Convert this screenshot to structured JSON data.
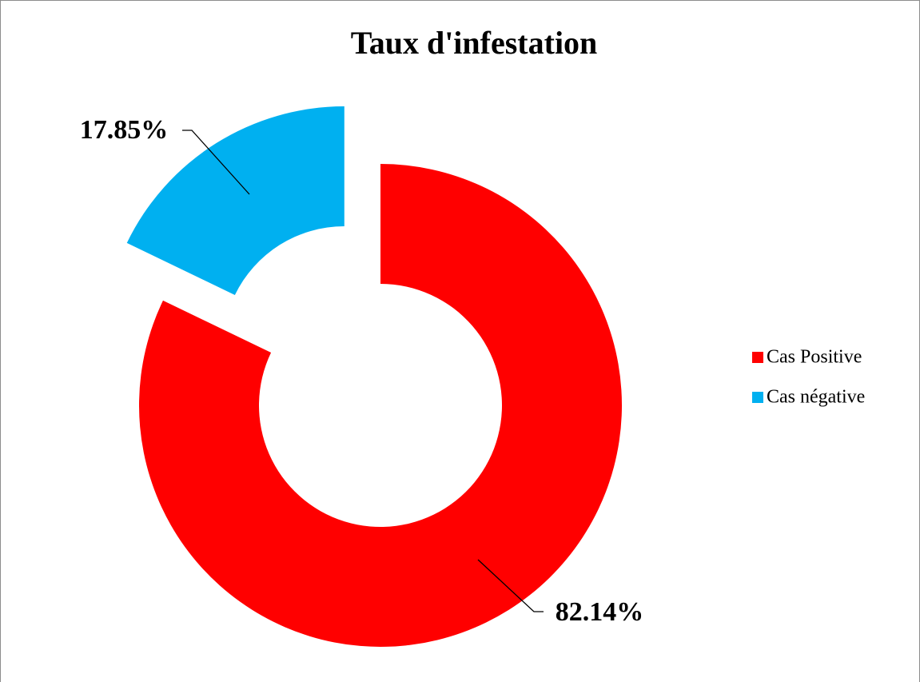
{
  "chart_data": {
    "type": "donut",
    "title": "Taux d'infestation",
    "categories": [
      "Cas Positive",
      "Cas négative"
    ],
    "values": [
      82.14,
      17.85
    ],
    "value_labels": [
      "82.14%",
      "17.85%"
    ],
    "colors": [
      "#ff0000",
      "#00b0f0"
    ],
    "exploded": [
      false,
      true
    ],
    "legend": "right"
  }
}
